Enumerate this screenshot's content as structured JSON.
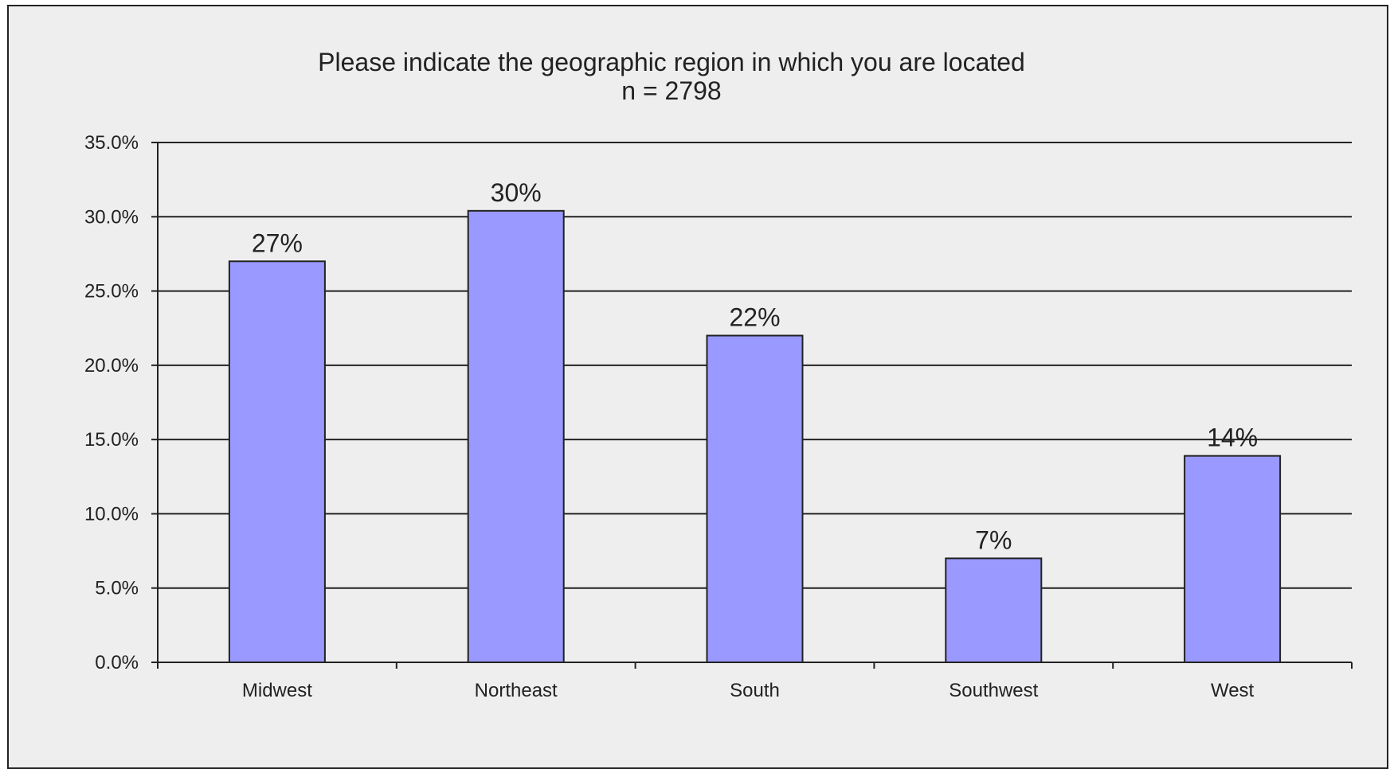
{
  "chart_data": {
    "type": "bar",
    "title": "Please indicate the geographic region in which you are located",
    "subtitle": "n = 2798",
    "categories": [
      "Midwest",
      "Northeast",
      "South",
      "Southwest",
      "West"
    ],
    "values": [
      27.0,
      30.4,
      22.0,
      7.0,
      13.9
    ],
    "data_labels": [
      "27%",
      "30%",
      "22%",
      "7%",
      "14%"
    ],
    "yticks": [
      "0.0%",
      "5.0%",
      "10.0%",
      "15.0%",
      "20.0%",
      "25.0%",
      "30.0%",
      "35.0%"
    ],
    "ylim": [
      0,
      35
    ],
    "ytick_step": 5,
    "xlabel": "",
    "ylabel": "",
    "grid": true,
    "legend": "none",
    "bar_color": "#9999ff",
    "background_color": "#eeeeee"
  }
}
